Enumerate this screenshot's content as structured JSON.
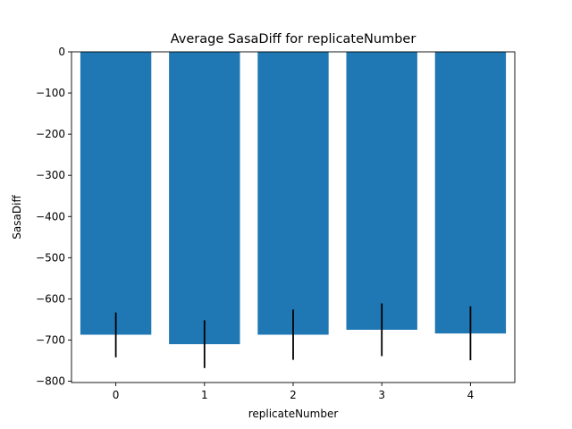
{
  "chart_data": {
    "type": "bar",
    "title": "Average SasaDiff for replicateNumber",
    "xlabel": "replicateNumber",
    "ylabel": "SasaDiff",
    "categories": [
      "0",
      "1",
      "2",
      "3",
      "4"
    ],
    "values": [
      -687,
      -710,
      -687,
      -675,
      -684
    ],
    "error_low": [
      -742,
      -768,
      -748,
      -739,
      -749
    ],
    "error_high": [
      -633,
      -652,
      -626,
      -611,
      -618
    ],
    "ylim": [
      -805,
      0
    ],
    "yticks": [
      0,
      -100,
      -200,
      -300,
      -400,
      -500,
      -600,
      -700,
      -800
    ],
    "ytick_labels": [
      "0",
      "−100",
      "−200",
      "−300",
      "−400",
      "−500",
      "−600",
      "−700",
      "−800"
    ],
    "bar_color": "#1f77b4",
    "errorbar_color": "#000000",
    "grid": false,
    "legend": "none"
  }
}
